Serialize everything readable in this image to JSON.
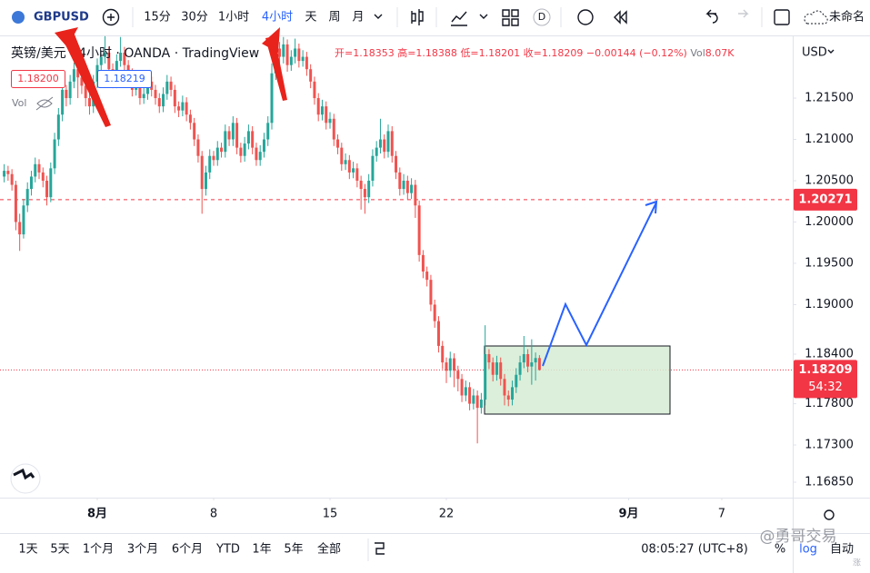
{
  "toolbar": {
    "symbol": "GBPUSD",
    "intervals": [
      "15分",
      "30分",
      "1小时",
      "4小时",
      "天",
      "周",
      "月"
    ],
    "badge": "D",
    "layout_name": "未命名"
  },
  "legend": {
    "title": "英镑/美元 · 4小时 · OANDA · TradingView",
    "ohlc": [
      "开=1.18353",
      "高=1.18388",
      "低=1.18201",
      "收=1.18209"
    ],
    "change": "−0.00144 (−0.12%)",
    "volume_label": "Vol",
    "volume": "8.07K",
    "sell": "1.18200",
    "buy": "1.18219",
    "indicator": "Vol"
  },
  "price_axis": {
    "currency": "USD"
  },
  "chart_data": {
    "type": "candlestick",
    "up_color": "#26a69a",
    "down_color": "#ef5350",
    "xlim": [
      -1.08,
      203.3
    ],
    "xticks": [
      {
        "value": 24,
        "label": "8月"
      },
      {
        "value": 54,
        "label": "8"
      },
      {
        "value": 84,
        "label": "15"
      },
      {
        "value": 114,
        "label": "22"
      },
      {
        "value": 161,
        "label": "9月"
      },
      {
        "value": 185,
        "label": "7"
      }
    ],
    "ylim": [
      1.16663,
      1.22248
    ],
    "yticks": [
      {
        "value": 1.215,
        "label": "1.21500"
      },
      {
        "value": 1.21,
        "label": "1.21000"
      },
      {
        "value": 1.205,
        "label": "1.20500"
      },
      {
        "value": 1.2,
        "label": "1.20000"
      },
      {
        "value": 1.195,
        "label": "1.19500"
      },
      {
        "value": 1.19,
        "label": "1.19000"
      },
      {
        "value": 1.184,
        "label": "1.18400"
      },
      {
        "value": 1.178,
        "label": "1.17800"
      },
      {
        "value": 1.173,
        "label": "1.17300"
      },
      {
        "value": 1.1685,
        "label": "1.16850"
      }
    ],
    "grid": false,
    "price_lines": [
      {
        "value": 1.20271,
        "color": "#f23645",
        "style": "dashed"
      },
      {
        "value": 1.18209,
        "color": "#f23645",
        "style": "dotted",
        "countdown": "54:32"
      }
    ],
    "ohlc": [
      [
        1.2055,
        1.207,
        1.2048,
        1.2062
      ],
      [
        1.2062,
        1.2068,
        1.205,
        1.2058
      ],
      [
        1.2058,
        1.2064,
        1.2038,
        1.2045
      ],
      [
        1.2045,
        1.205,
        1.199,
        1.2
      ],
      [
        1.2,
        1.201,
        1.1965,
        1.1985
      ],
      [
        1.1985,
        1.2028,
        1.198,
        1.202
      ],
      [
        1.202,
        1.2048,
        1.2012,
        1.204
      ],
      [
        1.204,
        1.2062,
        1.2032,
        1.2055
      ],
      [
        1.2055,
        1.2078,
        1.2048,
        1.207
      ],
      [
        1.207,
        1.2076,
        1.2052,
        1.206
      ],
      [
        1.206,
        1.2066,
        1.2042,
        1.205
      ],
      [
        1.205,
        1.2056,
        1.202,
        1.203
      ],
      [
        1.203,
        1.2072,
        1.2024,
        1.2065
      ],
      [
        1.2065,
        1.2108,
        1.2058,
        1.21
      ],
      [
        1.21,
        1.2138,
        1.2092,
        1.213
      ],
      [
        1.213,
        1.2168,
        1.2122,
        1.216
      ],
      [
        1.216,
        1.2166,
        1.214,
        1.215
      ],
      [
        1.215,
        1.2178,
        1.2142,
        1.217
      ],
      [
        1.217,
        1.2193,
        1.2162,
        1.2185
      ],
      [
        1.2185,
        1.2192,
        1.215,
        1.2175
      ],
      [
        1.2175,
        1.2182,
        1.2155,
        1.2165
      ],
      [
        1.2165,
        1.217,
        1.214,
        1.215
      ],
      [
        1.215,
        1.2158,
        1.213,
        1.214
      ],
      [
        1.214,
        1.2178,
        1.2132,
        1.217
      ],
      [
        1.217,
        1.2198,
        1.2162,
        1.219
      ],
      [
        1.219,
        1.2208,
        1.2182,
        1.22
      ],
      [
        1.22,
        1.2225,
        1.2192,
        1.2205
      ],
      [
        1.2205,
        1.2212,
        1.2178,
        1.2185
      ],
      [
        1.2185,
        1.2192,
        1.2162,
        1.217
      ],
      [
        1.217,
        1.2203,
        1.2162,
        1.2195
      ],
      [
        1.2195,
        1.2224,
        1.2188,
        1.2205
      ],
      [
        1.2205,
        1.2212,
        1.2182,
        1.219
      ],
      [
        1.219,
        1.2196,
        1.2172,
        1.218
      ],
      [
        1.218,
        1.2186,
        1.2152,
        1.216
      ],
      [
        1.216,
        1.2173,
        1.2153,
        1.2165
      ],
      [
        1.2165,
        1.2171,
        1.2142,
        1.215
      ],
      [
        1.215,
        1.2163,
        1.2143,
        1.2155
      ],
      [
        1.2155,
        1.2178,
        1.2148,
        1.217
      ],
      [
        1.217,
        1.2176,
        1.2152,
        1.216
      ],
      [
        1.216,
        1.2166,
        1.2142,
        1.215
      ],
      [
        1.215,
        1.2156,
        1.2132,
        1.214
      ],
      [
        1.214,
        1.2163,
        1.2133,
        1.2155
      ],
      [
        1.2155,
        1.2178,
        1.2148,
        1.217
      ],
      [
        1.217,
        1.2176,
        1.2152,
        1.216
      ],
      [
        1.216,
        1.2166,
        1.2132,
        1.214
      ],
      [
        1.214,
        1.2146,
        1.2127,
        1.2135
      ],
      [
        1.2135,
        1.2153,
        1.2128,
        1.2145
      ],
      [
        1.2145,
        1.2151,
        1.2122,
        1.213
      ],
      [
        1.213,
        1.2136,
        1.2112,
        1.212
      ],
      [
        1.212,
        1.2126,
        1.2092,
        1.21
      ],
      [
        1.21,
        1.2106,
        1.2072,
        1.208
      ],
      [
        1.208,
        1.2086,
        1.201,
        1.204
      ],
      [
        1.204,
        1.2068,
        1.2032,
        1.206
      ],
      [
        1.206,
        1.2088,
        1.2052,
        1.208
      ],
      [
        1.208,
        1.2086,
        1.2068,
        1.2075
      ],
      [
        1.2075,
        1.2098,
        1.2068,
        1.209
      ],
      [
        1.209,
        1.2096,
        1.2078,
        1.2085
      ],
      [
        1.2085,
        1.2118,
        1.2078,
        1.211
      ],
      [
        1.211,
        1.2116,
        1.2092,
        1.21
      ],
      [
        1.21,
        1.2128,
        1.2092,
        1.212
      ],
      [
        1.212,
        1.2126,
        1.2082,
        1.209
      ],
      [
        1.209,
        1.2096,
        1.2072,
        1.208
      ],
      [
        1.208,
        1.2103,
        1.2073,
        1.2095
      ],
      [
        1.2095,
        1.2118,
        1.2088,
        1.211
      ],
      [
        1.211,
        1.2116,
        1.2082,
        1.209
      ],
      [
        1.209,
        1.2096,
        1.2068,
        1.2075
      ],
      [
        1.2075,
        1.2093,
        1.2068,
        1.2085
      ],
      [
        1.2085,
        1.2108,
        1.2078,
        1.21
      ],
      [
        1.21,
        1.2128,
        1.2092,
        1.212
      ],
      [
        1.212,
        1.2192,
        1.2112,
        1.218
      ],
      [
        1.218,
        1.2222,
        1.2172,
        1.221
      ],
      [
        1.221,
        1.2218,
        1.2192,
        1.22
      ],
      [
        1.22,
        1.2224,
        1.2192,
        1.2215
      ],
      [
        1.2215,
        1.2221,
        1.2182,
        1.219
      ],
      [
        1.219,
        1.2208,
        1.2183,
        1.22
      ],
      [
        1.22,
        1.2222,
        1.2192,
        1.221
      ],
      [
        1.221,
        1.2216,
        1.2187,
        1.2195
      ],
      [
        1.2195,
        1.2208,
        1.2188,
        1.22
      ],
      [
        1.22,
        1.2206,
        1.2177,
        1.2185
      ],
      [
        1.2185,
        1.2191,
        1.2162,
        1.217
      ],
      [
        1.217,
        1.2176,
        1.2142,
        1.215
      ],
      [
        1.215,
        1.2156,
        1.2122,
        1.213
      ],
      [
        1.213,
        1.2148,
        1.2123,
        1.214
      ],
      [
        1.214,
        1.2146,
        1.2112,
        1.212
      ],
      [
        1.212,
        1.2133,
        1.2113,
        1.2125
      ],
      [
        1.2125,
        1.2131,
        1.2092,
        1.21
      ],
      [
        1.21,
        1.2106,
        1.2082,
        1.209
      ],
      [
        1.209,
        1.2096,
        1.2062,
        1.207
      ],
      [
        1.207,
        1.2083,
        1.2063,
        1.2075
      ],
      [
        1.2075,
        1.2081,
        1.2052,
        1.206
      ],
      [
        1.206,
        1.2073,
        1.2053,
        1.2065
      ],
      [
        1.2065,
        1.2071,
        1.2042,
        1.205
      ],
      [
        1.205,
        1.2056,
        1.2015,
        1.204
      ],
      [
        1.204,
        1.2046,
        1.201,
        1.203
      ],
      [
        1.203,
        1.2058,
        1.2023,
        1.205
      ],
      [
        1.205,
        1.2088,
        1.2043,
        1.208
      ],
      [
        1.208,
        1.2098,
        1.2073,
        1.209
      ],
      [
        1.209,
        1.2125,
        1.2083,
        1.21
      ],
      [
        1.21,
        1.2106,
        1.2077,
        1.2085
      ],
      [
        1.2085,
        1.2118,
        1.2078,
        1.211
      ],
      [
        1.211,
        1.2116,
        1.2072,
        1.208
      ],
      [
        1.208,
        1.2086,
        1.2052,
        1.206
      ],
      [
        1.206,
        1.2066,
        1.2032,
        1.204
      ],
      [
        1.204,
        1.2058,
        1.2033,
        1.205
      ],
      [
        1.205,
        1.2056,
        1.2027,
        1.2035
      ],
      [
        1.2035,
        1.2053,
        1.2028,
        1.2045
      ],
      [
        1.2045,
        1.2051,
        1.2005,
        1.202
      ],
      [
        1.202,
        1.2026,
        1.1952,
        1.196
      ],
      [
        1.196,
        1.1966,
        1.1932,
        1.194
      ],
      [
        1.194,
        1.1946,
        1.1922,
        1.193
      ],
      [
        1.193,
        1.1936,
        1.1892,
        1.19
      ],
      [
        1.19,
        1.1906,
        1.1872,
        1.188
      ],
      [
        1.188,
        1.1886,
        1.1842,
        1.185
      ],
      [
        1.185,
        1.1856,
        1.1822,
        1.183
      ],
      [
        1.183,
        1.1836,
        1.1805,
        1.182
      ],
      [
        1.182,
        1.1843,
        1.1812,
        1.1835
      ],
      [
        1.1835,
        1.1841,
        1.18,
        1.182
      ],
      [
        1.182,
        1.1826,
        1.1795,
        1.181
      ],
      [
        1.181,
        1.1816,
        1.1782,
        1.179
      ],
      [
        1.179,
        1.1808,
        1.1783,
        1.18
      ],
      [
        1.18,
        1.1806,
        1.1772,
        1.178
      ],
      [
        1.178,
        1.1798,
        1.1773,
        1.179
      ],
      [
        1.179,
        1.1796,
        1.1732,
        1.1775
      ],
      [
        1.1775,
        1.1793,
        1.1768,
        1.1785
      ],
      [
        1.1785,
        1.1875,
        1.1778,
        1.184
      ],
      [
        1.184,
        1.1846,
        1.1822,
        1.183
      ],
      [
        1.183,
        1.1836,
        1.1807,
        1.1815
      ],
      [
        1.1815,
        1.1838,
        1.1808,
        1.183
      ],
      [
        1.183,
        1.1836,
        1.1802,
        1.181
      ],
      [
        1.181,
        1.1816,
        1.1778,
        1.179
      ],
      [
        1.179,
        1.1796,
        1.1777,
        1.1785
      ],
      [
        1.1785,
        1.1808,
        1.1778,
        1.18
      ],
      [
        1.18,
        1.1823,
        1.1793,
        1.1815
      ],
      [
        1.1815,
        1.1838,
        1.1808,
        1.183
      ],
      [
        1.183,
        1.1862,
        1.1823,
        1.184
      ],
      [
        1.184,
        1.1846,
        1.1818,
        1.1825
      ],
      [
        1.1825,
        1.1858,
        1.1803,
        1.183
      ],
      [
        1.183,
        1.1842,
        1.1808,
        1.18353
      ],
      [
        1.18353,
        1.18388,
        1.18201,
        1.18209
      ]
    ]
  },
  "bottom_bar": {
    "ranges": [
      "1天",
      "5天",
      "1个月",
      "3个月",
      "6个月",
      "YTD",
      "1年",
      "5年",
      "全部"
    ],
    "time": "08:05:27 (UTC+8)",
    "percent": "%",
    "log": "log",
    "auto": "自动"
  },
  "watermark": "@勇哥交易"
}
